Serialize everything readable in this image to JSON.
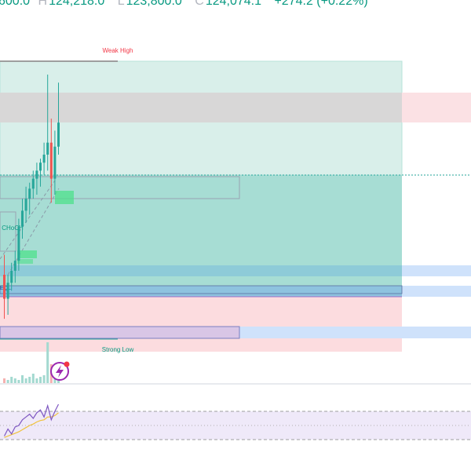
{
  "header": {
    "open_value": "600.0",
    "high_label": "H",
    "high_value": "124,218.0",
    "low_label": "L",
    "low_value": "123,800.0",
    "close_label": "C",
    "close_value": "124,074.1",
    "change": "+274.2 (+0.22%)"
  },
  "annotations": {
    "weak_high": "Weak High",
    "strong_low": "Strong Low",
    "choch": "CHoCH",
    "eql": "EQL"
  },
  "colors": {
    "bull": "#26a69a",
    "bear": "#ef5350",
    "premium_zone": "#d9efea",
    "discount_zone": "#a7ddd4",
    "pink_zone": "#fcdcdf",
    "blue_zone": "#cfe2fb",
    "rsi_line": "#7e57c2",
    "rsi_ma": "#f0c23b",
    "accent": "#089981",
    "negative": "#f23645"
  },
  "icons": {
    "badge": "lightning-badge-icon"
  },
  "chart_data": [
    {
      "type": "candlestick",
      "title": "",
      "series": [
        {
          "values": [
            {
              "o": 560,
              "h": 570,
              "l": 538,
              "c": 548
            },
            {
              "o": 548,
              "h": 560,
              "l": 540,
              "c": 556
            },
            {
              "o": 556,
              "h": 566,
              "l": 552,
              "c": 562
            },
            {
              "o": 562,
              "h": 572,
              "l": 556,
              "c": 567
            },
            {
              "o": 567,
              "h": 588,
              "l": 562,
              "c": 584
            },
            {
              "o": 584,
              "h": 598,
              "l": 578,
              "c": 592
            },
            {
              "o": 592,
              "h": 604,
              "l": 586,
              "c": 598
            },
            {
              "o": 598,
              "h": 606,
              "l": 590,
              "c": 603
            },
            {
              "o": 603,
              "h": 612,
              "l": 598,
              "c": 608
            },
            {
              "o": 608,
              "h": 616,
              "l": 600,
              "c": 612
            },
            {
              "o": 612,
              "h": 618,
              "l": 604,
              "c": 616
            },
            {
              "o": 616,
              "h": 626,
              "l": 610,
              "c": 620
            },
            {
              "o": 620,
              "h": 660,
              "l": 612,
              "c": 626
            },
            {
              "o": 626,
              "h": 638,
              "l": 596,
              "c": 608
            },
            {
              "o": 608,
              "h": 632,
              "l": 600,
              "c": 624
            },
            {
              "o": 624,
              "h": 656,
              "l": 620,
              "c": 636
            }
          ]
        },
        {
          "name": "Volume",
          "values": [
            3,
            2,
            4,
            3,
            2,
            5,
            3,
            4,
            6,
            3,
            4,
            5,
            26,
            12,
            8,
            6
          ]
        },
        {
          "name": "RSI",
          "values": [
            35,
            45,
            38,
            48,
            50,
            58,
            62,
            66,
            60,
            68,
            72,
            62,
            78,
            58,
            70,
            80
          ]
        },
        {
          "name": "RSI MA",
          "values": [
            33,
            35,
            37,
            39,
            41,
            44,
            47,
            50,
            52,
            55,
            57,
            58,
            62,
            62,
            64,
            68
          ]
        }
      ]
    }
  ]
}
